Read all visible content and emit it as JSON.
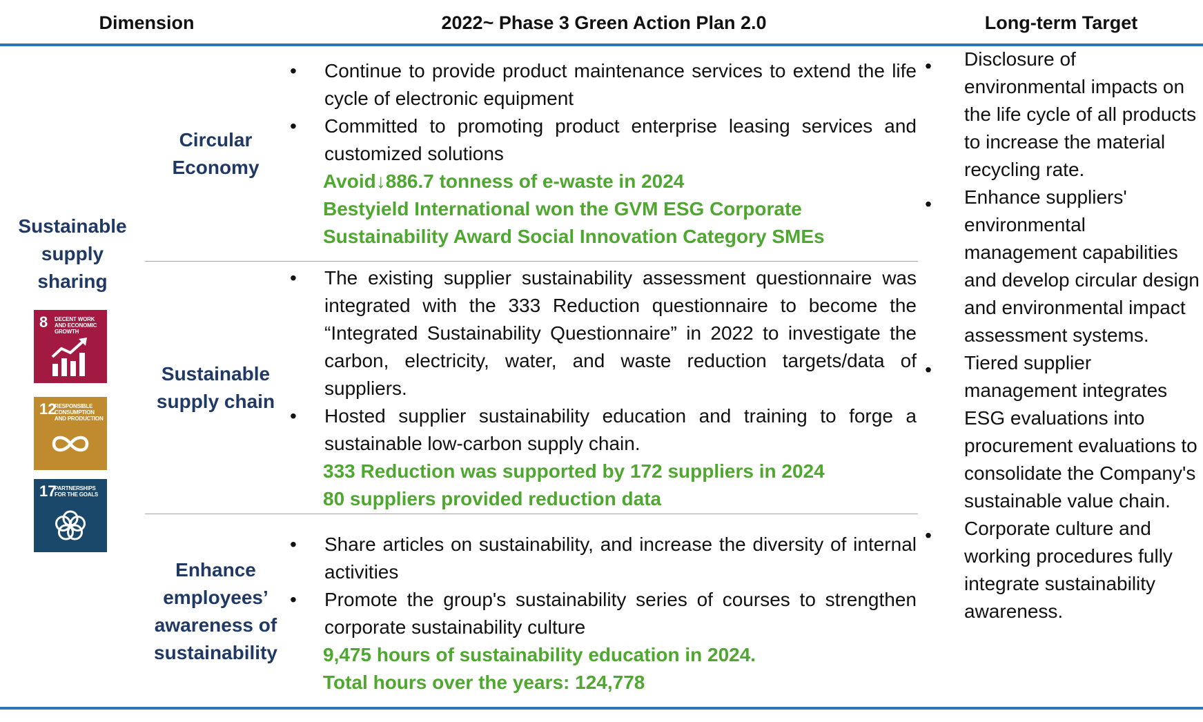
{
  "header": {
    "dimension": "Dimension",
    "plan": "2022~ Phase 3 Green Action Plan 2.0",
    "target": "Long-term Target"
  },
  "dimension": {
    "title": "Sustainable supply sharing",
    "sdgs": [
      {
        "number": "8",
        "text": "DECENT WORK AND ECONOMIC GROWTH",
        "color": "#a21942",
        "icon": "growth-chart-icon"
      },
      {
        "number": "12",
        "text": "RESPONSIBLE CONSUMPTION AND PRODUCTION",
        "color": "#bf8b2e",
        "icon": "infinity-loop-icon"
      },
      {
        "number": "17",
        "text": "PARTNERSHIPS FOR THE GOALS",
        "color": "#19486a",
        "icon": "flower-rings-icon"
      }
    ]
  },
  "sections": [
    {
      "title": "Circular Economy",
      "bullets": [
        "Continue to provide product maintenance services to extend the life cycle of electronic equipment",
        "Committed to promoting product enterprise leasing services and customized solutions"
      ],
      "results": [
        "Avoid↓886.7 tonness of e-waste in 2024",
        "Bestyield International won the GVM ESG Corporate",
        "Sustainability Award Social Innovation Category SMEs"
      ]
    },
    {
      "title": "Sustainable supply chain",
      "bullets": [
        "The existing supplier sustainability assessment questionnaire was integrated with the 333 Reduction questionnaire to become the “Integrated Sustainability Questionnaire” in 2022 to investigate the carbon, electricity, water, and waste reduction targets/data of suppliers.",
        "Hosted supplier sustainability education and training to forge a sustainable low-carbon supply chain."
      ],
      "results": [
        "333 Reduction was supported by 172 suppliers in 2024",
        "80 suppliers provided reduction data"
      ]
    },
    {
      "title": "Enhance employees’ awareness of sustainability",
      "bullets": [
        "Share articles on sustainability, and increase the diversity of internal activities",
        "Promote the group's sustainability series of courses to strengthen corporate sustainability culture"
      ],
      "results": [
        "9,475 hours of sustainability education in 2024.",
        "Total hours over the years: 124,778"
      ]
    }
  ],
  "targets": [
    "Disclosure of environmental impacts on the life cycle of all products to increase the material recycling rate.",
    "Enhance suppliers' environmental management capabilities and develop circular design and environmental impact assessment systems.",
    "Tiered supplier management integrates ESG evaluations into procurement evaluations to consolidate the Company's sustainable value chain.",
    "Corporate culture and working procedures fully integrate sustainability awareness."
  ],
  "bullet_char": "•"
}
